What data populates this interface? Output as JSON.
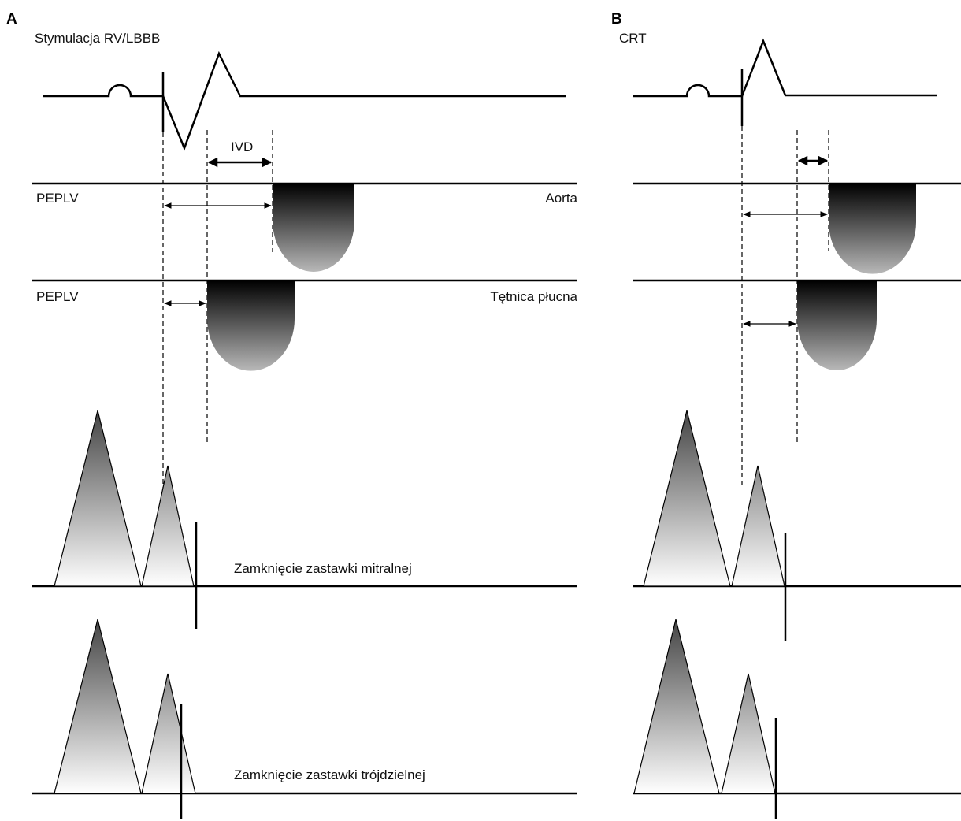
{
  "panels": {
    "a": {
      "letter": "A",
      "title": "Stymulacja RV/LBBB",
      "ivd_label": "IVD",
      "aorta_left": "PEPLV",
      "aorta_right": "Aorta",
      "pulm_left": "PEPLV",
      "pulm_right": "Tętnica płucna",
      "mitral_label": "Zamknięcie zastawki mitralnej",
      "tricuspid_label": "Zamknięcie zastawki trójdzielnej"
    },
    "b": {
      "letter": "B",
      "title": "CRT"
    }
  },
  "colors": {
    "line": "#000000",
    "flow_dark": "#000000",
    "flow_light": "#b8b8b8",
    "tri_dark": "#444444",
    "tri_light": "#ffffff"
  }
}
